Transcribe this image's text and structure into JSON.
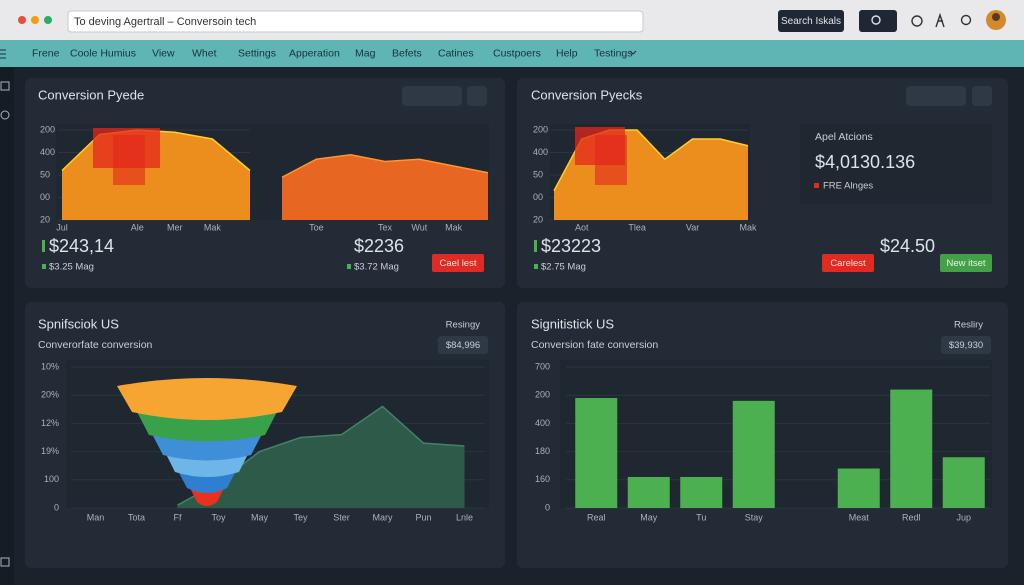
{
  "browser": {
    "address": "To deving Agertrall – Conversoin tech",
    "search_button": "Search Iskals"
  },
  "menu": [
    "Frene",
    "Coole Humius",
    "View",
    "Whet",
    "Settings",
    "Apperation",
    "Mag",
    "Befets",
    "Catines",
    "Custpoers",
    "Help",
    "Testings"
  ],
  "panels": [
    {
      "title": "Conversion Pyede",
      "stats": [
        {
          "value": "$243,14",
          "sub": "$3.25 Mag"
        },
        {
          "value": "$2236",
          "sub": "$3.72 Mag"
        }
      ],
      "button": "Cael lest"
    },
    {
      "title": "Conversion Pyecks",
      "stats": [
        {
          "value": "$23223",
          "sub": "$2.75 Mag"
        },
        {
          "value": "$24.50"
        }
      ],
      "buttons": [
        "Carelest",
        "New itset"
      ],
      "card": {
        "title": "Apel Atcions",
        "value": "$4,0130.136",
        "note": "FRE Alnges"
      }
    },
    {
      "title": "Spnifsciok US",
      "subtitle": "Converorfate conversion",
      "right_label": "Resingy",
      "badge": "$84,996"
    },
    {
      "title": "Signitistick US",
      "subtitle": "Conversion fate conversion",
      "right_label": "Resliry",
      "badge": "$39,930"
    }
  ],
  "chart_data": [
    {
      "type": "area",
      "color": "#f7941d",
      "categories": [
        "Jul",
        null,
        "Ale",
        "Mer",
        "Mak",
        null
      ],
      "values": [
        2.2,
        3.8,
        4.0,
        3.9,
        3.6,
        2.2
      ],
      "ylim": [
        0,
        4
      ],
      "yticks": [
        {
          "value": 4,
          "label": "200"
        },
        {
          "value": 3,
          "label": "400"
        },
        {
          "value": 2,
          "label": "50"
        },
        {
          "value": 1,
          "label": "00"
        },
        {
          "value": 0,
          "label": "20"
        }
      ],
      "grid": true
    },
    {
      "type": "area",
      "color": "#f26a22",
      "categories": [
        null,
        "Toe",
        null,
        "Tex",
        "Wut",
        "Mak",
        null
      ],
      "values": [
        1.9,
        2.7,
        2.9,
        2.6,
        2.7,
        2.4,
        2.1
      ],
      "ylim": [
        0,
        4
      ],
      "grid": true
    },
    {
      "type": "area",
      "color": "#f7941d",
      "categories": [
        null,
        "Aot",
        null,
        "Tlea",
        null,
        "Var",
        null,
        "Mak"
      ],
      "values": [
        1.3,
        3.6,
        4.0,
        4.0,
        2.7,
        3.6,
        3.6,
        3.3
      ],
      "ylim": [
        0,
        4
      ],
      "yticks": [
        {
          "value": 4,
          "label": "200"
        },
        {
          "value": 3,
          "label": "400"
        },
        {
          "value": 2,
          "label": "50"
        },
        {
          "value": 1,
          "label": "00"
        },
        {
          "value": 0,
          "label": "20"
        }
      ],
      "grid": true
    },
    {
      "type": "area",
      "color": "#2f5d4c",
      "categories": [
        "Man",
        "Tota",
        "Ff",
        "Toy",
        "May",
        "Tey",
        "Ster",
        "Mary",
        "Pun",
        "Lnle"
      ],
      "values": [
        null,
        null,
        0.1,
        0.9,
        2.0,
        2.5,
        2.6,
        3.6,
        2.3,
        2.2
      ],
      "ylim": [
        0,
        5
      ],
      "yticks": [
        {
          "value": 5,
          "label": "10%"
        },
        {
          "value": 4,
          "label": "20%"
        },
        {
          "value": 3,
          "label": "12%"
        },
        {
          "value": 2,
          "label": "19%"
        },
        {
          "value": 1,
          "label": "100"
        },
        0
      ],
      "grid": true
    },
    {
      "type": "bar",
      "color": "#4caf50",
      "categories": [
        "Real",
        "May",
        "Tu",
        "Stay",
        null,
        "Meat",
        "Redl",
        "Jup"
      ],
      "values": [
        3.9,
        1.1,
        1.1,
        3.8,
        null,
        1.4,
        4.2,
        1.8
      ],
      "ylim": [
        0,
        5
      ],
      "yticks": [
        {
          "value": 5,
          "label": "700"
        },
        {
          "value": 4,
          "label": "200"
        },
        {
          "value": 3,
          "label": "400"
        },
        {
          "value": 2,
          "label": "180"
        },
        {
          "value": 1,
          "label": "160"
        },
        0
      ],
      "grid": true
    }
  ]
}
